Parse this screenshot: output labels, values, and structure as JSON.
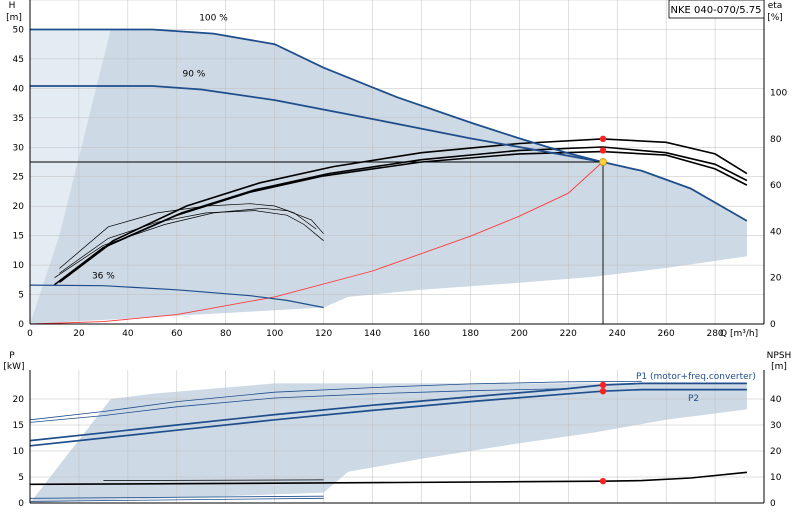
{
  "title": "NKE 040-070/5.75",
  "chart_data": [
    {
      "type": "line",
      "name": "Head / efficiency",
      "xlabel": "Q [m³/h]",
      "ylabel": "H [m]",
      "y2label": "eta [%]",
      "xlim": [
        0,
        300
      ],
      "ylim": [
        0,
        55
      ],
      "y2lim": [
        0,
        140
      ],
      "xticks": [
        0,
        20,
        40,
        60,
        80,
        100,
        120,
        140,
        160,
        180,
        200,
        220,
        240,
        260,
        280
      ],
      "yticks": [
        0,
        5,
        10,
        15,
        20,
        25,
        30,
        35,
        40,
        45,
        50
      ],
      "y2ticks": [
        0,
        20,
        40,
        60,
        80,
        100
      ],
      "grid": true,
      "head_curves": [
        {
          "label": "100 %",
          "points": [
            [
              0,
              50
            ],
            [
              20,
              50
            ],
            [
              33,
              50
            ],
            [
              50,
              50
            ],
            [
              75,
              49.3
            ],
            [
              100,
              47.5
            ],
            [
              120,
              43.5
            ],
            [
              150,
              38.5
            ],
            [
              180,
              34.2
            ],
            [
              200,
              31.5
            ],
            [
              220,
              29
            ],
            [
              234,
              27.5
            ],
            [
              250,
              26
            ],
            [
              270,
              23
            ],
            [
              293,
              17.5
            ]
          ]
        },
        {
          "label": "90 %",
          "points": [
            [
              0,
              40.4
            ],
            [
              30,
              40.4
            ],
            [
              50,
              40.4
            ],
            [
              70,
              39.8
            ],
            [
              100,
              38
            ],
            [
              140,
              34.8
            ],
            [
              180,
              31.5
            ],
            [
              210,
              29.3
            ],
            [
              234,
              27.5
            ]
          ]
        },
        {
          "label": "36 %",
          "points": [
            [
              0,
              6.6
            ],
            [
              30,
              6.5
            ],
            [
              60,
              5.8
            ],
            [
              90,
              4.8
            ],
            [
              105,
              4
            ],
            [
              120,
              2.8
            ]
          ]
        }
      ],
      "operating_point": {
        "q": 234.2,
        "h": 27.5
      },
      "eta_curves": [
        {
          "points": [
            [
              10,
              17
            ],
            [
              30,
              33
            ],
            [
              60,
              47
            ],
            [
              90,
              57
            ],
            [
              120,
              64
            ],
            [
              160,
              70
            ],
            [
              200,
              73.5
            ],
            [
              234,
              74.5
            ],
            [
              260,
              73
            ],
            [
              280,
              67
            ],
            [
              293,
              60
            ]
          ]
        },
        {
          "points": [
            [
              12,
              18
            ],
            [
              32,
              34
            ],
            [
              62,
              48
            ],
            [
              92,
              58
            ],
            [
              122,
              65
            ],
            [
              160,
              71
            ],
            [
              200,
              75
            ],
            [
              234,
              76.5
            ],
            [
              260,
              74
            ],
            [
              280,
              69
            ],
            [
              293,
              62
            ]
          ]
        },
        {
          "points": [
            [
              14,
              20
            ],
            [
              34,
              36
            ],
            [
              64,
              51
            ],
            [
              94,
              61
            ],
            [
              124,
              68
            ],
            [
              160,
              74
            ],
            [
              200,
              78
            ],
            [
              234,
              80
            ],
            [
              260,
              78.5
            ],
            [
              280,
              73.5
            ],
            [
              293,
              65
            ]
          ]
        },
        {
          "points": [
            [
              10,
              20
            ],
            [
              30,
              34
            ],
            [
              55,
              43
            ],
            [
              75,
              48
            ],
            [
              95,
              50
            ],
            [
              105,
              49
            ],
            [
              115,
              45
            ],
            [
              120,
              39
            ]
          ]
        },
        {
          "points": [
            [
              12,
              22
            ],
            [
              32,
              37
            ],
            [
              52,
              44
            ],
            [
              72,
              48
            ],
            [
              92,
              49
            ],
            [
              105,
              47
            ],
            [
              112,
              43
            ],
            [
              120,
              36
            ]
          ]
        },
        {
          "points": [
            [
              12,
              24
            ],
            [
              32,
              42
            ],
            [
              52,
              48
            ],
            [
              72,
              51
            ],
            [
              90,
              52
            ],
            [
              100,
              51
            ],
            [
              108,
              48
            ],
            [
              117,
              41
            ]
          ]
        }
      ],
      "system_curve": {
        "points": [
          [
            0,
            0
          ],
          [
            30,
            0.4
          ],
          [
            60,
            1.6
          ],
          [
            100,
            4.6
          ],
          [
            140,
            9
          ],
          [
            180,
            14.9
          ],
          [
            200,
            18.3
          ],
          [
            220,
            22.2
          ],
          [
            234,
            27.5
          ]
        ]
      },
      "operating_eta_markers": [
        80,
        75
      ],
      "region": {
        "upper": [
          [
            0,
            50
          ],
          [
            33,
            50
          ],
          [
            50,
            50
          ],
          [
            75,
            49.3
          ],
          [
            100,
            47.5
          ],
          [
            120,
            43.5
          ],
          [
            150,
            38.5
          ],
          [
            180,
            34.2
          ],
          [
            200,
            31.5
          ],
          [
            220,
            29
          ],
          [
            234,
            27.5
          ],
          [
            250,
            26
          ],
          [
            270,
            23
          ],
          [
            293,
            17.5
          ]
        ],
        "lower": [
          [
            293,
            11.5
          ],
          [
            260,
            9.5
          ],
          [
            230,
            8
          ],
          [
            200,
            7
          ],
          [
            160,
            5.8
          ],
          [
            130,
            4.6
          ],
          [
            120,
            2.8
          ]
        ]
      }
    },
    {
      "type": "line",
      "name": "Power / NPSH",
      "xlabel": "Q [m³/h]",
      "ylabel": "P [kW]",
      "y2label": "NPSH [m]",
      "xlim": [
        0,
        300
      ],
      "ylim": [
        0,
        25
      ],
      "y2lim": [
        0,
        50
      ],
      "yticks": [
        0,
        5,
        10,
        15,
        20
      ],
      "y2ticks": [
        0,
        10,
        20,
        30,
        40
      ],
      "grid": true,
      "series": [
        {
          "name": "P1 (motor+freq.converter)",
          "points": [
            [
              0,
              12
            ],
            [
              30,
              13.5
            ],
            [
              60,
              15
            ],
            [
              100,
              17
            ],
            [
              140,
              18.8
            ],
            [
              180,
              20.4
            ],
            [
              220,
              22
            ],
            [
              234,
              22.7
            ],
            [
              250,
              23
            ],
            [
              293,
              23
            ]
          ]
        },
        {
          "name": "P2",
          "points": [
            [
              0,
              11
            ],
            [
              30,
              12.5
            ],
            [
              60,
              14
            ],
            [
              100,
              16
            ],
            [
              140,
              17.8
            ],
            [
              180,
              19.5
            ],
            [
              220,
              21
            ],
            [
              234,
              21.5
            ],
            [
              250,
              21.8
            ],
            [
              293,
              21.8
            ]
          ]
        },
        {
          "name": "",
          "points": [
            [
              0,
              16
            ],
            [
              30,
              17.6
            ],
            [
              60,
              19.5
            ],
            [
              100,
              21.3
            ],
            [
              140,
              22.2
            ],
            [
              180,
              22.9
            ],
            [
              220,
              23.3
            ],
            [
              250,
              23.4
            ]
          ]
        },
        {
          "name": "",
          "points": [
            [
              0,
              15.5
            ],
            [
              30,
              16.8
            ],
            [
              60,
              18.5
            ],
            [
              100,
              20.2
            ],
            [
              140,
              21
            ],
            [
              180,
              21.6
            ],
            [
              220,
              22
            ]
          ]
        },
        {
          "name": "",
          "points": [
            [
              0,
              0.3
            ],
            [
              120,
              0.9
            ]
          ]
        },
        {
          "name": "",
          "points": [
            [
              0,
              0.9
            ],
            [
              120,
              1.3
            ]
          ]
        }
      ],
      "npsh_curve": {
        "points": [
          [
            0,
            7.2
          ],
          [
            50,
            7.4
          ],
          [
            100,
            7.6
          ],
          [
            150,
            7.9
          ],
          [
            200,
            8.2
          ],
          [
            234,
            8.4
          ],
          [
            250,
            8.6
          ],
          [
            270,
            9.6
          ],
          [
            293,
            11.8
          ]
        ]
      },
      "npsh_reference": {
        "points": [
          [
            30,
            8.6
          ],
          [
            120,
            8.9
          ]
        ]
      },
      "operating_markers": {
        "p1": 22.7,
        "p2": 21.5,
        "npsh": 8.4
      },
      "region": {
        "upper": [
          [
            0,
            0
          ],
          [
            33,
            20
          ],
          [
            50,
            21
          ],
          [
            100,
            23
          ],
          [
            293,
            23
          ]
        ],
        "lower": [
          [
            293,
            18
          ],
          [
            260,
            16
          ],
          [
            230,
            13.5
          ],
          [
            200,
            11.5
          ],
          [
            160,
            8.5
          ],
          [
            130,
            6
          ],
          [
            120,
            2
          ]
        ]
      }
    }
  ]
}
